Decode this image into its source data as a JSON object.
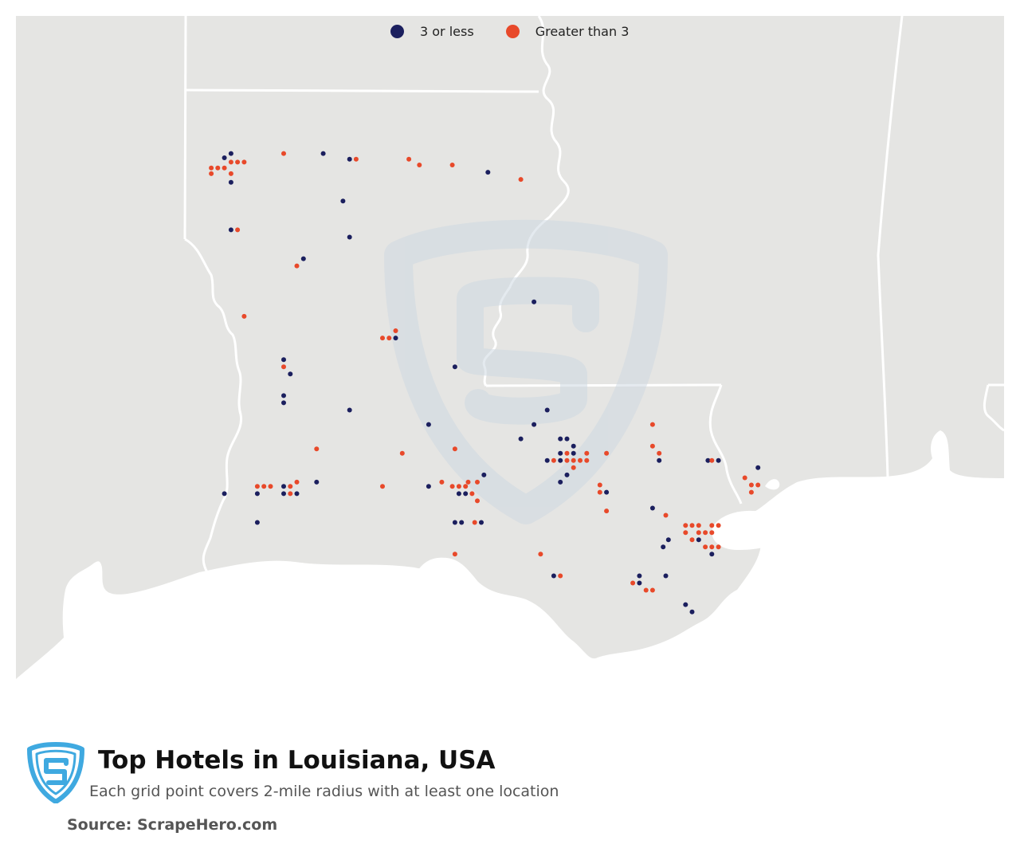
{
  "legend": {
    "items": [
      {
        "label": "3 or less",
        "color": "#1b1f5e"
      },
      {
        "label": "Greater than 3",
        "color": "#e8492a"
      }
    ]
  },
  "footer": {
    "title": "Top Hotels in Louisiana, USA",
    "subtitle": "Each grid point covers 2-mile radius with at least one location",
    "source": "Source: ScrapeHero.com"
  },
  "colors": {
    "land": "#e5e5e3",
    "border": "#ffffff",
    "watermark": "#cfd9e2",
    "logo": "#3fa9e0"
  },
  "icons": [
    "scrapehero-logo-icon",
    "scrapehero-watermark-icon"
  ],
  "map_points": [
    {
      "lon": -93.75,
      "lat": 32.55,
      "group": "3 or less"
    },
    {
      "lon": -93.7,
      "lat": 32.52,
      "group": "Greater than 3"
    },
    {
      "lon": -93.65,
      "lat": 32.52,
      "group": "Greater than 3"
    },
    {
      "lon": -93.6,
      "lat": 32.52,
      "group": "Greater than 3"
    },
    {
      "lon": -93.7,
      "lat": 32.58,
      "group": "3 or less"
    },
    {
      "lon": -93.8,
      "lat": 32.48,
      "group": "Greater than 3"
    },
    {
      "lon": -93.75,
      "lat": 32.48,
      "group": "Greater than 3"
    },
    {
      "lon": -93.85,
      "lat": 32.48,
      "group": "Greater than 3"
    },
    {
      "lon": -93.85,
      "lat": 32.44,
      "group": "Greater than 3"
    },
    {
      "lon": -93.7,
      "lat": 32.44,
      "group": "Greater than 3"
    },
    {
      "lon": -93.7,
      "lat": 32.38,
      "group": "3 or less"
    },
    {
      "lon": -93.3,
      "lat": 32.58,
      "group": "Greater than 3"
    },
    {
      "lon": -93.0,
      "lat": 32.58,
      "group": "3 or less"
    },
    {
      "lon": -92.8,
      "lat": 32.54,
      "group": "3 or less"
    },
    {
      "lon": -92.75,
      "lat": 32.54,
      "group": "Greater than 3"
    },
    {
      "lon": -92.35,
      "lat": 32.54,
      "group": "Greater than 3"
    },
    {
      "lon": -92.27,
      "lat": 32.5,
      "group": "Greater than 3"
    },
    {
      "lon": -92.02,
      "lat": 32.5,
      "group": "Greater than 3"
    },
    {
      "lon": -91.75,
      "lat": 32.45,
      "group": "3 or less"
    },
    {
      "lon": -91.5,
      "lat": 32.4,
      "group": "Greater than 3"
    },
    {
      "lon": -92.85,
      "lat": 32.25,
      "group": "3 or less"
    },
    {
      "lon": -93.7,
      "lat": 32.05,
      "group": "3 or less"
    },
    {
      "lon": -93.65,
      "lat": 32.05,
      "group": "Greater than 3"
    },
    {
      "lon": -92.8,
      "lat": 32.0,
      "group": "3 or less"
    },
    {
      "lon": -93.15,
      "lat": 31.85,
      "group": "3 or less"
    },
    {
      "lon": -93.2,
      "lat": 31.8,
      "group": "Greater than 3"
    },
    {
      "lon": -93.6,
      "lat": 31.45,
      "group": "Greater than 3"
    },
    {
      "lon": -91.4,
      "lat": 31.55,
      "group": "3 or less"
    },
    {
      "lon": -92.45,
      "lat": 31.35,
      "group": "Greater than 3"
    },
    {
      "lon": -92.55,
      "lat": 31.3,
      "group": "Greater than 3"
    },
    {
      "lon": -92.5,
      "lat": 31.3,
      "group": "Greater than 3"
    },
    {
      "lon": -92.45,
      "lat": 31.3,
      "group": "3 or less"
    },
    {
      "lon": -93.3,
      "lat": 31.15,
      "group": "3 or less"
    },
    {
      "lon": -93.3,
      "lat": 31.1,
      "group": "Greater than 3"
    },
    {
      "lon": -93.25,
      "lat": 31.05,
      "group": "3 or less"
    },
    {
      "lon": -92.0,
      "lat": 31.1,
      "group": "3 or less"
    },
    {
      "lon": -93.3,
      "lat": 30.9,
      "group": "3 or less"
    },
    {
      "lon": -93.3,
      "lat": 30.85,
      "group": "3 or less"
    },
    {
      "lon": -92.8,
      "lat": 30.8,
      "group": "3 or less"
    },
    {
      "lon": -92.2,
      "lat": 30.7,
      "group": "3 or less"
    },
    {
      "lon": -91.3,
      "lat": 30.8,
      "group": "3 or less"
    },
    {
      "lon": -91.4,
      "lat": 30.7,
      "group": "3 or less"
    },
    {
      "lon": -91.5,
      "lat": 30.6,
      "group": "3 or less"
    },
    {
      "lon": -93.05,
      "lat": 30.53,
      "group": "Greater than 3"
    },
    {
      "lon": -92.0,
      "lat": 30.53,
      "group": "Greater than 3"
    },
    {
      "lon": -92.4,
      "lat": 30.5,
      "group": "Greater than 3"
    },
    {
      "lon": -93.5,
      "lat": 30.27,
      "group": "Greater than 3"
    },
    {
      "lon": -93.45,
      "lat": 30.27,
      "group": "Greater than 3"
    },
    {
      "lon": -93.4,
      "lat": 30.27,
      "group": "Greater than 3"
    },
    {
      "lon": -93.3,
      "lat": 30.27,
      "group": "3 or less"
    },
    {
      "lon": -93.25,
      "lat": 30.27,
      "group": "Greater than 3"
    },
    {
      "lon": -93.2,
      "lat": 30.3,
      "group": "Greater than 3"
    },
    {
      "lon": -93.5,
      "lat": 30.22,
      "group": "3 or less"
    },
    {
      "lon": -93.3,
      "lat": 30.22,
      "group": "3 or less"
    },
    {
      "lon": -93.25,
      "lat": 30.22,
      "group": "Greater than 3"
    },
    {
      "lon": -93.2,
      "lat": 30.22,
      "group": "3 or less"
    },
    {
      "lon": -93.05,
      "lat": 30.3,
      "group": "3 or less"
    },
    {
      "lon": -93.75,
      "lat": 30.22,
      "group": "3 or less"
    },
    {
      "lon": -93.5,
      "lat": 30.02,
      "group": "3 or less"
    },
    {
      "lon": -92.55,
      "lat": 30.27,
      "group": "Greater than 3"
    },
    {
      "lon": -92.2,
      "lat": 30.27,
      "group": "3 or less"
    },
    {
      "lon": -92.1,
      "lat": 30.3,
      "group": "Greater than 3"
    },
    {
      "lon": -92.02,
      "lat": 30.27,
      "group": "Greater than 3"
    },
    {
      "lon": -91.97,
      "lat": 30.27,
      "group": "Greater than 3"
    },
    {
      "lon": -91.92,
      "lat": 30.27,
      "group": "Greater than 3"
    },
    {
      "lon": -91.9,
      "lat": 30.3,
      "group": "Greater than 3"
    },
    {
      "lon": -91.83,
      "lat": 30.3,
      "group": "Greater than 3"
    },
    {
      "lon": -91.78,
      "lat": 30.35,
      "group": "3 or less"
    },
    {
      "lon": -91.97,
      "lat": 30.22,
      "group": "3 or less"
    },
    {
      "lon": -91.92,
      "lat": 30.22,
      "group": "3 or less"
    },
    {
      "lon": -91.87,
      "lat": 30.22,
      "group": "Greater than 3"
    },
    {
      "lon": -91.83,
      "lat": 30.17,
      "group": "Greater than 3"
    },
    {
      "lon": -92.0,
      "lat": 30.02,
      "group": "3 or less"
    },
    {
      "lon": -91.95,
      "lat": 30.02,
      "group": "3 or less"
    },
    {
      "lon": -91.85,
      "lat": 30.02,
      "group": "Greater than 3"
    },
    {
      "lon": -91.8,
      "lat": 30.02,
      "group": "3 or less"
    },
    {
      "lon": -91.2,
      "lat": 30.6,
      "group": "3 or less"
    },
    {
      "lon": -91.15,
      "lat": 30.6,
      "group": "3 or less"
    },
    {
      "lon": -91.1,
      "lat": 30.55,
      "group": "3 or less"
    },
    {
      "lon": -91.2,
      "lat": 30.5,
      "group": "3 or less"
    },
    {
      "lon": -91.15,
      "lat": 30.5,
      "group": "Greater than 3"
    },
    {
      "lon": -91.1,
      "lat": 30.5,
      "group": "3 or less"
    },
    {
      "lon": -91.3,
      "lat": 30.45,
      "group": "3 or less"
    },
    {
      "lon": -91.25,
      "lat": 30.45,
      "group": "Greater than 3"
    },
    {
      "lon": -91.2,
      "lat": 30.45,
      "group": "3 or less"
    },
    {
      "lon": -91.15,
      "lat": 30.45,
      "group": "Greater than 3"
    },
    {
      "lon": -91.1,
      "lat": 30.45,
      "group": "Greater than 3"
    },
    {
      "lon": -91.05,
      "lat": 30.45,
      "group": "Greater than 3"
    },
    {
      "lon": -91.0,
      "lat": 30.45,
      "group": "Greater than 3"
    },
    {
      "lon": -91.1,
      "lat": 30.4,
      "group": "Greater than 3"
    },
    {
      "lon": -91.15,
      "lat": 30.35,
      "group": "3 or less"
    },
    {
      "lon": -91.2,
      "lat": 30.3,
      "group": "3 or less"
    },
    {
      "lon": -91.0,
      "lat": 30.5,
      "group": "Greater than 3"
    },
    {
      "lon": -90.85,
      "lat": 30.5,
      "group": "Greater than 3"
    },
    {
      "lon": -90.5,
      "lat": 30.7,
      "group": "Greater than 3"
    },
    {
      "lon": -90.5,
      "lat": 30.55,
      "group": "Greater than 3"
    },
    {
      "lon": -90.45,
      "lat": 30.5,
      "group": "Greater than 3"
    },
    {
      "lon": -90.45,
      "lat": 30.45,
      "group": "3 or less"
    },
    {
      "lon": -90.08,
      "lat": 30.45,
      "group": "3 or less"
    },
    {
      "lon": -90.05,
      "lat": 30.45,
      "group": "Greater than 3"
    },
    {
      "lon": -90.0,
      "lat": 30.45,
      "group": "3 or less"
    },
    {
      "lon": -89.7,
      "lat": 30.4,
      "group": "3 or less"
    },
    {
      "lon": -89.8,
      "lat": 30.33,
      "group": "Greater than 3"
    },
    {
      "lon": -89.75,
      "lat": 30.28,
      "group": "Greater than 3"
    },
    {
      "lon": -89.7,
      "lat": 30.28,
      "group": "Greater than 3"
    },
    {
      "lon": -89.75,
      "lat": 30.23,
      "group": "Greater than 3"
    },
    {
      "lon": -90.9,
      "lat": 30.28,
      "group": "Greater than 3"
    },
    {
      "lon": -90.85,
      "lat": 30.23,
      "group": "3 or less"
    },
    {
      "lon": -90.9,
      "lat": 30.23,
      "group": "Greater than 3"
    },
    {
      "lon": -90.85,
      "lat": 30.1,
      "group": "Greater than 3"
    },
    {
      "lon": -90.5,
      "lat": 30.12,
      "group": "3 or less"
    },
    {
      "lon": -90.4,
      "lat": 30.07,
      "group": "Greater than 3"
    },
    {
      "lon": -90.25,
      "lat": 30.0,
      "group": "Greater than 3"
    },
    {
      "lon": -90.2,
      "lat": 30.0,
      "group": "Greater than 3"
    },
    {
      "lon": -90.15,
      "lat": 30.0,
      "group": "Greater than 3"
    },
    {
      "lon": -90.05,
      "lat": 30.0,
      "group": "Greater than 3"
    },
    {
      "lon": -90.0,
      "lat": 30.0,
      "group": "Greater than 3"
    },
    {
      "lon": -90.25,
      "lat": 29.95,
      "group": "Greater than 3"
    },
    {
      "lon": -90.15,
      "lat": 29.95,
      "group": "Greater than 3"
    },
    {
      "lon": -90.1,
      "lat": 29.95,
      "group": "Greater than 3"
    },
    {
      "lon": -90.05,
      "lat": 29.95,
      "group": "Greater than 3"
    },
    {
      "lon": -90.2,
      "lat": 29.9,
      "group": "Greater than 3"
    },
    {
      "lon": -90.15,
      "lat": 29.9,
      "group": "3 or less"
    },
    {
      "lon": -90.1,
      "lat": 29.85,
      "group": "Greater than 3"
    },
    {
      "lon": -90.05,
      "lat": 29.85,
      "group": "Greater than 3"
    },
    {
      "lon": -90.0,
      "lat": 29.85,
      "group": "Greater than 3"
    },
    {
      "lon": -90.05,
      "lat": 29.8,
      "group": "3 or less"
    },
    {
      "lon": -90.38,
      "lat": 29.9,
      "group": "3 or less"
    },
    {
      "lon": -90.42,
      "lat": 29.85,
      "group": "3 or less"
    },
    {
      "lon": -92.0,
      "lat": 29.8,
      "group": "Greater than 3"
    },
    {
      "lon": -91.35,
      "lat": 29.8,
      "group": "Greater than 3"
    },
    {
      "lon": -91.25,
      "lat": 29.65,
      "group": "3 or less"
    },
    {
      "lon": -91.2,
      "lat": 29.65,
      "group": "Greater than 3"
    },
    {
      "lon": -90.6,
      "lat": 29.65,
      "group": "3 or less"
    },
    {
      "lon": -90.65,
      "lat": 29.6,
      "group": "Greater than 3"
    },
    {
      "lon": -90.6,
      "lat": 29.6,
      "group": "3 or less"
    },
    {
      "lon": -90.55,
      "lat": 29.55,
      "group": "Greater than 3"
    },
    {
      "lon": -90.5,
      "lat": 29.55,
      "group": "Greater than 3"
    },
    {
      "lon": -90.4,
      "lat": 29.65,
      "group": "3 or less"
    },
    {
      "lon": -90.25,
      "lat": 29.45,
      "group": "3 or less"
    },
    {
      "lon": -90.2,
      "lat": 29.4,
      "group": "3 or less"
    }
  ]
}
